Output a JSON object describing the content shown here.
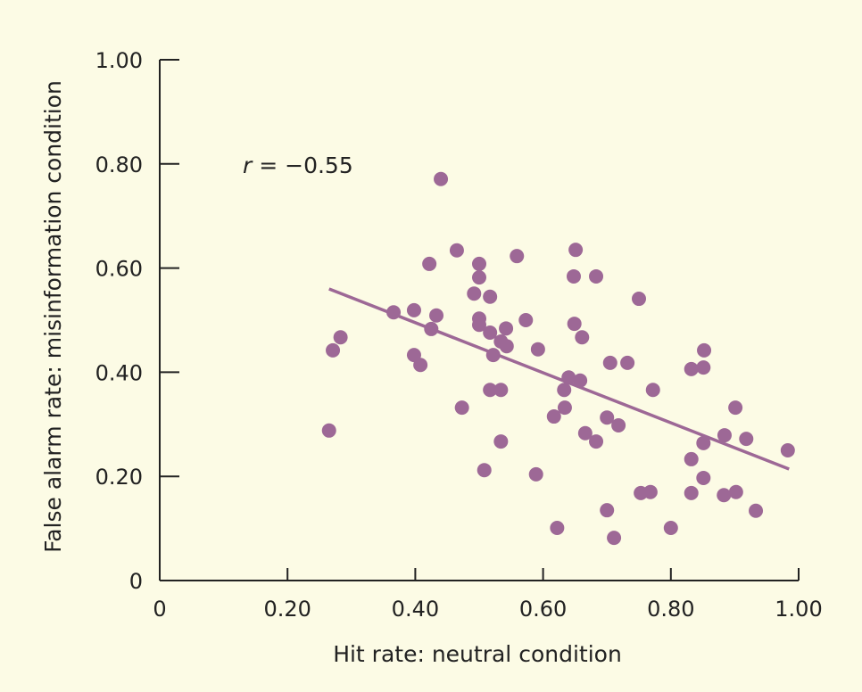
{
  "chart_data": {
    "type": "scatter",
    "title": "",
    "xlabel": "Hit rate: neutral condition",
    "ylabel": "False alarm rate: misinformation condition",
    "xlim": [
      0,
      1.0
    ],
    "ylim": [
      0,
      1.0
    ],
    "x_ticks": [
      "0",
      "0.20",
      "0.40",
      "0.60",
      "0.80",
      "1.00"
    ],
    "y_ticks": [
      "0",
      "0.20",
      "0.40",
      "0.60",
      "0.80",
      "1.00"
    ],
    "grid": false,
    "annotation": {
      "r_symbol": "r",
      "text": " = −0.55"
    },
    "colors": {
      "points": "#9d6896",
      "background": "#fcfbe5",
      "axis": "#222222"
    },
    "regression_line": {
      "x": [
        0.265,
        0.985
      ],
      "y": [
        0.56,
        0.214
      ]
    },
    "points": [
      [
        0.44,
        0.771
      ],
      [
        0.465,
        0.634
      ],
      [
        0.422,
        0.608
      ],
      [
        0.559,
        0.623
      ],
      [
        0.5,
        0.608
      ],
      [
        0.5,
        0.582
      ],
      [
        0.492,
        0.551
      ],
      [
        0.517,
        0.545
      ],
      [
        0.366,
        0.515
      ],
      [
        0.398,
        0.519
      ],
      [
        0.433,
        0.509
      ],
      [
        0.425,
        0.483
      ],
      [
        0.5,
        0.503
      ],
      [
        0.5,
        0.491
      ],
      [
        0.517,
        0.476
      ],
      [
        0.542,
        0.484
      ],
      [
        0.573,
        0.5
      ],
      [
        0.534,
        0.459
      ],
      [
        0.543,
        0.45
      ],
      [
        0.522,
        0.433
      ],
      [
        0.592,
        0.444
      ],
      [
        0.283,
        0.467
      ],
      [
        0.271,
        0.442
      ],
      [
        0.398,
        0.433
      ],
      [
        0.408,
        0.414
      ],
      [
        0.517,
        0.366
      ],
      [
        0.534,
        0.366
      ],
      [
        0.473,
        0.332
      ],
      [
        0.265,
        0.288
      ],
      [
        0.534,
        0.267
      ],
      [
        0.508,
        0.212
      ],
      [
        0.589,
        0.204
      ],
      [
        0.622,
        0.101
      ],
      [
        0.651,
        0.635
      ],
      [
        0.648,
        0.584
      ],
      [
        0.683,
        0.584
      ],
      [
        0.75,
        0.541
      ],
      [
        0.649,
        0.493
      ],
      [
        0.661,
        0.467
      ],
      [
        0.705,
        0.418
      ],
      [
        0.732,
        0.418
      ],
      [
        0.852,
        0.442
      ],
      [
        0.832,
        0.406
      ],
      [
        0.851,
        0.409
      ],
      [
        0.64,
        0.39
      ],
      [
        0.658,
        0.384
      ],
      [
        0.633,
        0.366
      ],
      [
        0.772,
        0.366
      ],
      [
        0.634,
        0.332
      ],
      [
        0.617,
        0.315
      ],
      [
        0.7,
        0.313
      ],
      [
        0.718,
        0.298
      ],
      [
        0.666,
        0.283
      ],
      [
        0.683,
        0.267
      ],
      [
        0.901,
        0.332
      ],
      [
        0.884,
        0.279
      ],
      [
        0.918,
        0.272
      ],
      [
        0.851,
        0.264
      ],
      [
        0.983,
        0.25
      ],
      [
        0.832,
        0.233
      ],
      [
        0.851,
        0.197
      ],
      [
        0.832,
        0.168
      ],
      [
        0.753,
        0.168
      ],
      [
        0.768,
        0.17
      ],
      [
        0.883,
        0.164
      ],
      [
        0.902,
        0.17
      ],
      [
        0.933,
        0.134
      ],
      [
        0.7,
        0.135
      ],
      [
        0.8,
        0.101
      ],
      [
        0.711,
        0.082
      ]
    ]
  }
}
